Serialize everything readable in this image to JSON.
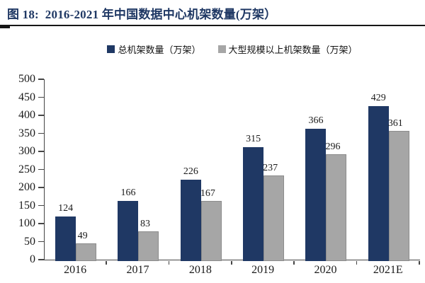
{
  "title": "图 18:  2016-2021 年中国数据中心机架数量(万架）",
  "legend": [
    {
      "label": "总机架数量（万架）",
      "color": "#1f3864"
    },
    {
      "label": "大型规模以上机架数量（万架）",
      "color": "#a6a6a6"
    }
  ],
  "chart_data": {
    "type": "bar",
    "title": "2016-2021 年中国数据中心机架数量(万架)",
    "categories": [
      "2016",
      "2017",
      "2018",
      "2019",
      "2020",
      "2021E"
    ],
    "series": [
      {
        "name": "总机架数量（万架）",
        "color": "#1f3864",
        "values": [
          124,
          166,
          226,
          315,
          366,
          429
        ]
      },
      {
        "name": "大型规模以上机架数量（万架）",
        "color": "#a6a6a6",
        "values": [
          49,
          83,
          167,
          237,
          296,
          361
        ]
      }
    ],
    "xlabel": "",
    "ylabel": "",
    "ylim": [
      0,
      500
    ],
    "ytick_step": 50,
    "grid": false,
    "legend_position": "top",
    "data_labels": true
  },
  "colors": {
    "accent_navy": "#1f3864",
    "series_gray": "#a6a6a6",
    "axis": "#454545",
    "header_rule": "#161616",
    "text": "#1a1a1a"
  }
}
